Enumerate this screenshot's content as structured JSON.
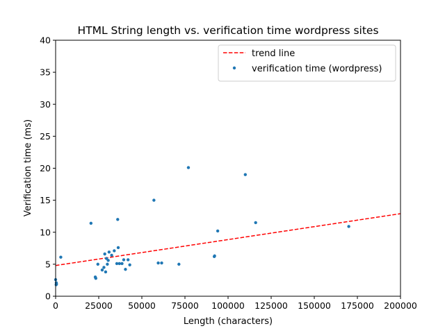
{
  "chart_data": {
    "type": "scatter",
    "title": "HTML String length vs. verification time wordpress sites",
    "xlabel": "Length (characters)",
    "ylabel": "Verification time (ms)",
    "xlim": [
      0,
      200000
    ],
    "ylim": [
      0,
      40
    ],
    "xticks": [
      0,
      25000,
      50000,
      75000,
      100000,
      125000,
      150000,
      175000,
      200000
    ],
    "xtick_labels": [
      "0",
      "25000",
      "50000",
      "75000",
      "100000",
      "125000",
      "150000",
      "175000",
      "200000"
    ],
    "yticks": [
      0,
      5,
      10,
      15,
      20,
      25,
      30,
      35,
      40
    ],
    "ytick_labels": [
      "0",
      "5",
      "10",
      "15",
      "20",
      "25",
      "30",
      "35",
      "40"
    ],
    "grid": false,
    "legend_position": "top-right",
    "colors": {
      "points": "#1f77b4",
      "trend": "#ff0000"
    },
    "trend_line": {
      "name": "trend line",
      "style": "dashed",
      "x": [
        0,
        200000
      ],
      "y": [
        4.8,
        12.9
      ]
    },
    "series": [
      {
        "name": "verification time (wordpress)",
        "points": [
          [
            0,
            2.6
          ],
          [
            300,
            1.8
          ],
          [
            400,
            2.1
          ],
          [
            500,
            1.9
          ],
          [
            3000,
            6.1
          ],
          [
            20500,
            11.4
          ],
          [
            23000,
            3.0
          ],
          [
            23300,
            2.8
          ],
          [
            24500,
            5.0
          ],
          [
            27000,
            4.1
          ],
          [
            28000,
            4.5
          ],
          [
            28500,
            6.6
          ],
          [
            29000,
            3.8
          ],
          [
            29500,
            5.9
          ],
          [
            30000,
            5.0
          ],
          [
            30500,
            5.6
          ],
          [
            31000,
            6.9
          ],
          [
            32500,
            6.4
          ],
          [
            34000,
            7.1
          ],
          [
            35500,
            5.1
          ],
          [
            36000,
            12.0
          ],
          [
            36300,
            7.6
          ],
          [
            37000,
            5.1
          ],
          [
            38500,
            5.1
          ],
          [
            39500,
            5.7
          ],
          [
            40500,
            4.2
          ],
          [
            42000,
            5.7
          ],
          [
            43000,
            4.9
          ],
          [
            57000,
            15.0
          ],
          [
            59500,
            5.2
          ],
          [
            61500,
            5.2
          ],
          [
            71500,
            5.0
          ],
          [
            77000,
            20.1
          ],
          [
            92000,
            6.2
          ],
          [
            92200,
            6.3
          ],
          [
            94000,
            10.2
          ],
          [
            110000,
            19.0
          ],
          [
            116000,
            11.5
          ],
          [
            170000,
            10.9
          ]
        ]
      }
    ]
  }
}
